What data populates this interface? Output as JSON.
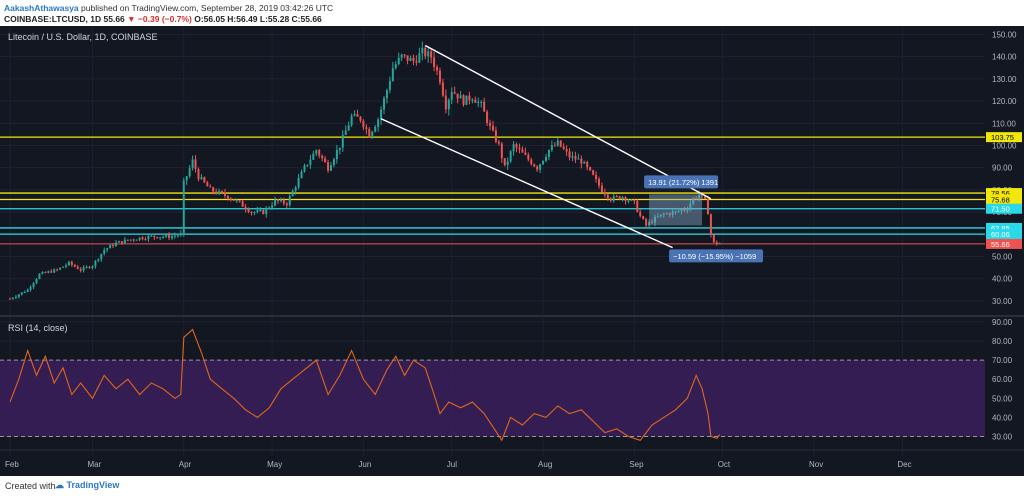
{
  "header": {
    "author": "AakashAthawasya",
    "published_text": "published on TradingView.com, September 28, 2019 03:42:26 UTC",
    "symbol": "COINBASE:LTCUSD, 1D",
    "last": "55.66",
    "change": "−0.39 (−0.7%)",
    "ohlc": "O:56.05 H:56.49 L:55.28 C:55.66"
  },
  "footer": {
    "created_with": "Created with",
    "brand": "TradingView"
  },
  "colors": {
    "background": "#131722",
    "up_candle": "#26a69a",
    "down_candle": "#ef5350",
    "support_yellow": "#f2e70a",
    "support_cyan": "#29d9e8",
    "last_price": "#ef5350",
    "rsi_line": "#e0661e",
    "rsi_band": "#3a1f5a"
  },
  "chart_data": [
    {
      "type": "candlestick",
      "title": "Litecoin / U.S. Dollar, 1D, COINBASE",
      "x_tick_labels": [
        "Feb",
        "Mar",
        "Apr",
        "May",
        "Jun",
        "Jul",
        "Aug",
        "Sep",
        "Oct",
        "Nov",
        "Dec"
      ],
      "x_tick_days": [
        0,
        28,
        59,
        89,
        120,
        150,
        181,
        212,
        242,
        273,
        303
      ],
      "ylim": [
        25,
        152
      ],
      "y_ticks": [
        30,
        40,
        50,
        60,
        70,
        80,
        90,
        100,
        110,
        120,
        130,
        140,
        150
      ],
      "y_tick_labels": [
        "30.00",
        "40.00",
        "50.00",
        "60.00",
        "70.00",
        "80.00",
        "90.00",
        "100.00",
        "110.00",
        "120.00",
        "130.00",
        "140.00",
        "150.00"
      ],
      "price_points": [
        {
          "day": 0,
          "close": 31
        },
        {
          "day": 6,
          "close": 35
        },
        {
          "day": 10,
          "close": 42
        },
        {
          "day": 16,
          "close": 44
        },
        {
          "day": 20,
          "close": 47
        },
        {
          "day": 24,
          "close": 44
        },
        {
          "day": 28,
          "close": 46
        },
        {
          "day": 32,
          "close": 53
        },
        {
          "day": 36,
          "close": 56
        },
        {
          "day": 42,
          "close": 58
        },
        {
          "day": 48,
          "close": 59
        },
        {
          "day": 54,
          "close": 59
        },
        {
          "day": 58,
          "close": 60
        },
        {
          "day": 59,
          "close": 83
        },
        {
          "day": 62,
          "close": 93
        },
        {
          "day": 64,
          "close": 86
        },
        {
          "day": 68,
          "close": 80
        },
        {
          "day": 74,
          "close": 77
        },
        {
          "day": 78,
          "close": 74
        },
        {
          "day": 82,
          "close": 70
        },
        {
          "day": 86,
          "close": 70
        },
        {
          "day": 90,
          "close": 75
        },
        {
          "day": 94,
          "close": 74
        },
        {
          "day": 97,
          "close": 82
        },
        {
          "day": 100,
          "close": 90
        },
        {
          "day": 104,
          "close": 98
        },
        {
          "day": 108,
          "close": 90
        },
        {
          "day": 112,
          "close": 100
        },
        {
          "day": 116,
          "close": 113
        },
        {
          "day": 119,
          "close": 112
        },
        {
          "day": 122,
          "close": 105
        },
        {
          "day": 125,
          "close": 112
        },
        {
          "day": 128,
          "close": 125
        },
        {
          "day": 130,
          "close": 135
        },
        {
          "day": 133,
          "close": 140
        },
        {
          "day": 137,
          "close": 138
        },
        {
          "day": 140,
          "close": 142
        },
        {
          "day": 143,
          "close": 140
        },
        {
          "day": 146,
          "close": 130
        },
        {
          "day": 148,
          "close": 118
        },
        {
          "day": 150,
          "close": 125
        },
        {
          "day": 154,
          "close": 120
        },
        {
          "day": 157,
          "close": 122
        },
        {
          "day": 160,
          "close": 118
        },
        {
          "day": 163,
          "close": 108
        },
        {
          "day": 166,
          "close": 100
        },
        {
          "day": 168,
          "close": 90
        },
        {
          "day": 171,
          "close": 100
        },
        {
          "day": 175,
          "close": 95
        },
        {
          "day": 179,
          "close": 90
        },
        {
          "day": 183,
          "close": 98
        },
        {
          "day": 186,
          "close": 101
        },
        {
          "day": 190,
          "close": 95
        },
        {
          "day": 194,
          "close": 93
        },
        {
          "day": 198,
          "close": 86
        },
        {
          "day": 201,
          "close": 80
        },
        {
          "day": 204,
          "close": 76
        },
        {
          "day": 208,
          "close": 77
        },
        {
          "day": 212,
          "close": 74
        },
        {
          "day": 214,
          "close": 68
        },
        {
          "day": 216,
          "close": 64
        },
        {
          "day": 219,
          "close": 67
        },
        {
          "day": 222,
          "close": 69
        },
        {
          "day": 226,
          "close": 70
        },
        {
          "day": 230,
          "close": 72
        },
        {
          "day": 232,
          "close": 76
        },
        {
          "day": 234,
          "close": 78
        },
        {
          "day": 236,
          "close": 75
        },
        {
          "day": 237,
          "close": 70
        },
        {
          "day": 238,
          "close": 60
        },
        {
          "day": 239,
          "close": 56
        },
        {
          "day": 241,
          "close": 56
        }
      ],
      "horizontal_levels": [
        {
          "price": 103.75,
          "label": "103.75",
          "color": "#f2e70a"
        },
        {
          "price": 78.56,
          "label": "78.56",
          "color": "#f2e70a"
        },
        {
          "price": 75.68,
          "label": "75.68",
          "color": "#f2e70a"
        },
        {
          "price": 71.5,
          "label": "71.50",
          "color": "#29d9e8"
        },
        {
          "price": 62.85,
          "label": "62.85",
          "color": "#29d9e8"
        },
        {
          "price": 60.06,
          "label": "60.06",
          "color": "#29d9e8"
        },
        {
          "price": 55.66,
          "label": "55.66",
          "color": "#ef5350"
        }
      ],
      "channel_lines": [
        {
          "from": {
            "day": 141,
            "price": 145
          },
          "to": {
            "day": 238,
            "price": 76
          }
        },
        {
          "from": {
            "day": 126,
            "price": 112
          },
          "to": {
            "day": 225,
            "price": 54
          }
        }
      ],
      "measure_up": {
        "label": "13.91 (21.72%) 1391",
        "from": {
          "day": 217,
          "price": 64
        },
        "to": {
          "day": 235,
          "price": 78
        }
      },
      "measure_down": {
        "label": "−10.59 (−15.95%) −1059"
      }
    },
    {
      "type": "line",
      "title": "RSI (14, close)",
      "ylim": [
        25,
        90
      ],
      "y_ticks": [
        30,
        40,
        50,
        60,
        70,
        80,
        90
      ],
      "y_tick_labels": [
        "30.00",
        "40.00",
        "50.00",
        "60.00",
        "70.00",
        "80.00",
        "90.00"
      ],
      "band": [
        30,
        70
      ],
      "rsi_points": [
        {
          "day": 0,
          "value": 48
        },
        {
          "day": 3,
          "value": 60
        },
        {
          "day": 6,
          "value": 75
        },
        {
          "day": 9,
          "value": 62
        },
        {
          "day": 12,
          "value": 72
        },
        {
          "day": 15,
          "value": 58
        },
        {
          "day": 18,
          "value": 66
        },
        {
          "day": 21,
          "value": 52
        },
        {
          "day": 24,
          "value": 58
        },
        {
          "day": 28,
          "value": 50
        },
        {
          "day": 32,
          "value": 62
        },
        {
          "day": 36,
          "value": 55
        },
        {
          "day": 40,
          "value": 60
        },
        {
          "day": 44,
          "value": 52
        },
        {
          "day": 48,
          "value": 58
        },
        {
          "day": 52,
          "value": 55
        },
        {
          "day": 56,
          "value": 50
        },
        {
          "day": 58,
          "value": 52
        },
        {
          "day": 59,
          "value": 82
        },
        {
          "day": 62,
          "value": 86
        },
        {
          "day": 65,
          "value": 74
        },
        {
          "day": 68,
          "value": 60
        },
        {
          "day": 72,
          "value": 55
        },
        {
          "day": 76,
          "value": 50
        },
        {
          "day": 80,
          "value": 44
        },
        {
          "day": 84,
          "value": 40
        },
        {
          "day": 88,
          "value": 45
        },
        {
          "day": 92,
          "value": 55
        },
        {
          "day": 96,
          "value": 60
        },
        {
          "day": 100,
          "value": 65
        },
        {
          "day": 104,
          "value": 70
        },
        {
          "day": 108,
          "value": 52
        },
        {
          "day": 112,
          "value": 62
        },
        {
          "day": 116,
          "value": 75
        },
        {
          "day": 120,
          "value": 60
        },
        {
          "day": 124,
          "value": 52
        },
        {
          "day": 128,
          "value": 65
        },
        {
          "day": 131,
          "value": 72
        },
        {
          "day": 134,
          "value": 62
        },
        {
          "day": 137,
          "value": 70
        },
        {
          "day": 141,
          "value": 66
        },
        {
          "day": 144,
          "value": 52
        },
        {
          "day": 146,
          "value": 42
        },
        {
          "day": 149,
          "value": 48
        },
        {
          "day": 153,
          "value": 45
        },
        {
          "day": 157,
          "value": 48
        },
        {
          "day": 161,
          "value": 42
        },
        {
          "day": 164,
          "value": 35
        },
        {
          "day": 167,
          "value": 28
        },
        {
          "day": 170,
          "value": 40
        },
        {
          "day": 174,
          "value": 36
        },
        {
          "day": 178,
          "value": 42
        },
        {
          "day": 182,
          "value": 40
        },
        {
          "day": 186,
          "value": 46
        },
        {
          "day": 190,
          "value": 42
        },
        {
          "day": 194,
          "value": 44
        },
        {
          "day": 198,
          "value": 38
        },
        {
          "day": 202,
          "value": 32
        },
        {
          "day": 206,
          "value": 34
        },
        {
          "day": 210,
          "value": 30
        },
        {
          "day": 214,
          "value": 28
        },
        {
          "day": 218,
          "value": 36
        },
        {
          "day": 222,
          "value": 40
        },
        {
          "day": 226,
          "value": 44
        },
        {
          "day": 230,
          "value": 50
        },
        {
          "day": 233,
          "value": 62
        },
        {
          "day": 235,
          "value": 55
        },
        {
          "day": 237,
          "value": 42
        },
        {
          "day": 238,
          "value": 30
        },
        {
          "day": 240,
          "value": 29
        },
        {
          "day": 241,
          "value": 31
        }
      ]
    }
  ]
}
